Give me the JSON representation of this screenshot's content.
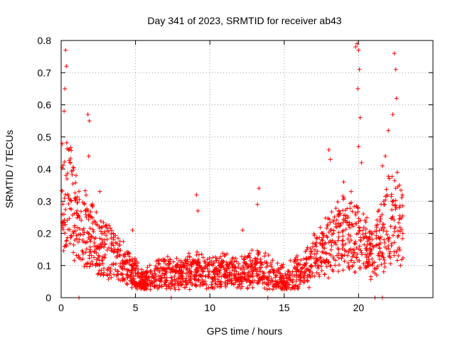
{
  "chart_data": {
    "type": "scatter",
    "title": "Day 341 of 2023, SRMTID for receiver ab43",
    "xlabel": "GPS time / hours",
    "ylabel": "SRMTID / TECUs",
    "xlim": [
      0,
      25
    ],
    "ylim": [
      0,
      0.8
    ],
    "grid": true,
    "marker": "+",
    "color": "#ff0000",
    "x_ticks": [
      0,
      5,
      10,
      15,
      20
    ],
    "x_tick_labels": [
      "0",
      "5",
      "10",
      "15",
      "20"
    ],
    "y_ticks": [
      0,
      0.1,
      0.2,
      0.3,
      0.4,
      0.5,
      0.6,
      0.7,
      0.8
    ],
    "y_tick_labels": [
      "0",
      "0.1",
      "0.2",
      "0.3",
      "0.4",
      "0.5",
      "0.6",
      "0.7",
      "0.8"
    ],
    "series": [
      {
        "name": "SRMTID",
        "trend": [
          [
            0,
            0.3
          ],
          [
            0.5,
            0.32
          ],
          [
            1,
            0.25
          ],
          [
            2,
            0.19
          ],
          [
            3,
            0.15
          ],
          [
            4,
            0.11
          ],
          [
            5,
            0.07
          ],
          [
            5.5,
            0.05
          ],
          [
            6,
            0.06
          ],
          [
            7,
            0.08
          ],
          [
            8,
            0.07
          ],
          [
            9,
            0.09
          ],
          [
            10,
            0.08
          ],
          [
            11,
            0.08
          ],
          [
            12,
            0.07
          ],
          [
            13,
            0.09
          ],
          [
            14,
            0.08
          ],
          [
            14.5,
            0.06
          ],
          [
            15,
            0.06
          ],
          [
            16,
            0.08
          ],
          [
            17,
            0.12
          ],
          [
            18,
            0.16
          ],
          [
            19,
            0.2
          ],
          [
            20,
            0.18
          ],
          [
            21,
            0.14
          ],
          [
            22,
            0.24
          ],
          [
            23,
            0.22
          ]
        ],
        "spikes": [
          [
            0.2,
            0.58
          ],
          [
            0.3,
            0.77
          ],
          [
            0.35,
            0.72
          ],
          [
            0.25,
            0.65
          ],
          [
            0.5,
            0.46
          ],
          [
            1.0,
            0.38
          ],
          [
            1.8,
            0.57
          ],
          [
            1.9,
            0.55
          ],
          [
            1.85,
            0.44
          ],
          [
            2.6,
            0.33
          ],
          [
            3.5,
            0.2
          ],
          [
            4.8,
            0.21
          ],
          [
            9.1,
            0.32
          ],
          [
            9.2,
            0.27
          ],
          [
            12.2,
            0.21
          ],
          [
            13.3,
            0.34
          ],
          [
            13.2,
            0.29
          ],
          [
            18.0,
            0.46
          ],
          [
            18.1,
            0.43
          ],
          [
            19.0,
            0.36
          ],
          [
            19.5,
            0.33
          ],
          [
            19.8,
            0.78
          ],
          [
            19.9,
            0.79
          ],
          [
            20.0,
            0.77
          ],
          [
            20.05,
            0.71
          ],
          [
            19.95,
            0.65
          ],
          [
            20.1,
            0.56
          ],
          [
            20.0,
            0.47
          ],
          [
            20.2,
            0.42
          ],
          [
            21.6,
            0.41
          ],
          [
            22.0,
            0.52
          ],
          [
            22.4,
            0.76
          ],
          [
            22.5,
            0.71
          ],
          [
            22.55,
            0.62
          ],
          [
            22.3,
            0.57
          ],
          [
            22.6,
            0.39
          ],
          [
            21.8,
            0.44
          ]
        ],
        "zeros": [
          1.2,
          7.4,
          13.9,
          21.1,
          21.6
        ]
      }
    ]
  }
}
